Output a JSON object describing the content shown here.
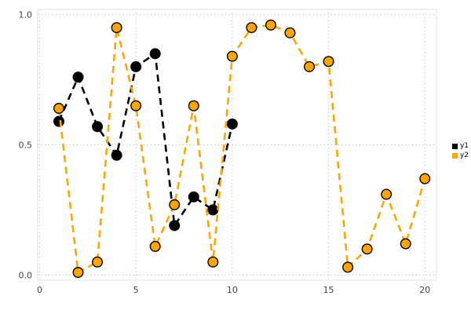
{
  "figure": {
    "background": "#ffffff"
  },
  "chart_data": {
    "type": "line",
    "title": "",
    "xlabel": "",
    "ylabel": "",
    "line_style": "dashed",
    "marker": "circle",
    "grid": true,
    "grid_color": "#c9c9c9",
    "frame_color": "#e0e0e0",
    "legend_position": "center right outside",
    "xlim": [
      -0.1,
      20.6
    ],
    "ylim": [
      -0.02,
      1.02
    ],
    "xticks": [
      0,
      5,
      10,
      15,
      20
    ],
    "xtick_labels": [
      "0",
      "5",
      "10",
      "15",
      "20"
    ],
    "yticks": [
      0,
      0.5,
      1
    ],
    "ytick_labels": [
      "0.0",
      "0.5",
      "1.0"
    ],
    "series": [
      {
        "name": "y1",
        "color": "#000000",
        "marker_edge": "#000000",
        "x": [
          1,
          2,
          3,
          4,
          5,
          6,
          7,
          8,
          9,
          10
        ],
        "values": [
          0.59,
          0.76,
          0.57,
          0.46,
          0.8,
          0.85,
          0.19,
          0.3,
          0.25,
          0.58
        ]
      },
      {
        "name": "y2",
        "color": "#FFA500",
        "marker_edge": "#000000",
        "x": [
          1,
          2,
          3,
          4,
          5,
          6,
          7,
          8,
          9,
          10,
          11,
          12,
          13,
          14,
          15,
          16,
          17,
          18,
          19,
          20
        ],
        "values": [
          0.64,
          0.01,
          0.05,
          0.95,
          0.65,
          0.11,
          0.27,
          0.65,
          0.05,
          0.84,
          0.95,
          0.96,
          0.93,
          0.8,
          0.82,
          0.03,
          0.1,
          0.31,
          0.12,
          0.37
        ]
      }
    ]
  }
}
